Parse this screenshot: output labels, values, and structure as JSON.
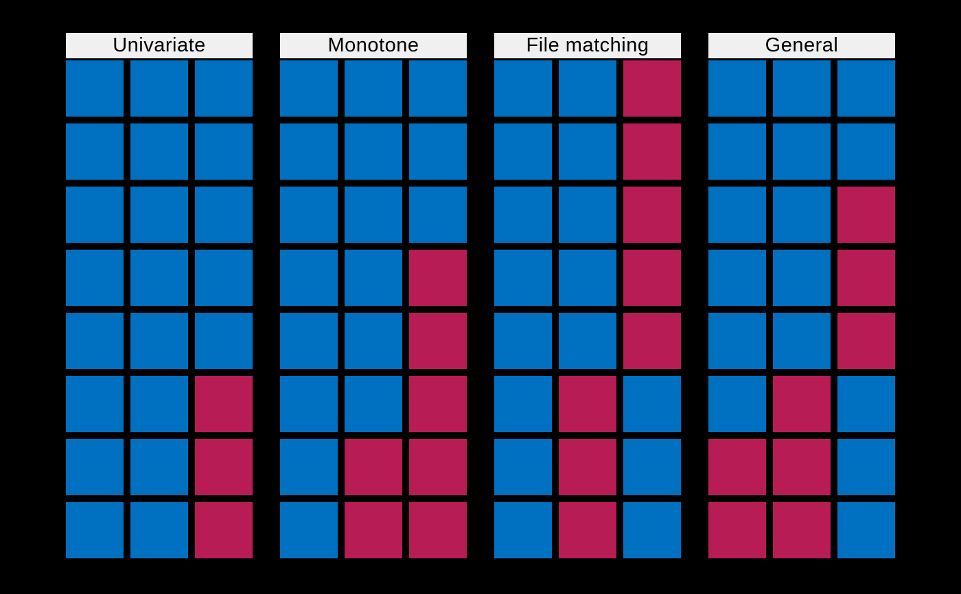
{
  "figure": {
    "colors": {
      "background": "#000000",
      "observed_blue": "#0070C0",
      "missing_red": "#B81C55",
      "header_bg": "#F0F0F0",
      "header_text": "#000000"
    }
  },
  "chart_data": {
    "type": "heatmap",
    "rows": 8,
    "columns_per_panel": 3,
    "cell_values": {
      "1": "blue cell",
      "0": "red cell"
    },
    "cell_colors": {
      "1": "#0070C0",
      "0": "#B81C55"
    },
    "legend_position": "none",
    "grid": "off",
    "panels": [
      {
        "title": "Univariate",
        "pattern": [
          [
            1,
            1,
            1
          ],
          [
            1,
            1,
            1
          ],
          [
            1,
            1,
            1
          ],
          [
            1,
            1,
            1
          ],
          [
            1,
            1,
            1
          ],
          [
            1,
            1,
            0
          ],
          [
            1,
            1,
            0
          ],
          [
            1,
            1,
            0
          ]
        ]
      },
      {
        "title": "Monotone",
        "pattern": [
          [
            1,
            1,
            1
          ],
          [
            1,
            1,
            1
          ],
          [
            1,
            1,
            1
          ],
          [
            1,
            1,
            0
          ],
          [
            1,
            1,
            0
          ],
          [
            1,
            1,
            0
          ],
          [
            1,
            0,
            0
          ],
          [
            1,
            0,
            0
          ]
        ]
      },
      {
        "title": "File matching",
        "pattern": [
          [
            1,
            1,
            0
          ],
          [
            1,
            1,
            0
          ],
          [
            1,
            1,
            0
          ],
          [
            1,
            1,
            0
          ],
          [
            1,
            1,
            0
          ],
          [
            1,
            0,
            1
          ],
          [
            1,
            0,
            1
          ],
          [
            1,
            0,
            1
          ]
        ]
      },
      {
        "title": "General",
        "pattern": [
          [
            1,
            1,
            1
          ],
          [
            1,
            1,
            1
          ],
          [
            1,
            1,
            0
          ],
          [
            1,
            1,
            0
          ],
          [
            1,
            1,
            0
          ],
          [
            1,
            0,
            1
          ],
          [
            0,
            0,
            1
          ],
          [
            0,
            0,
            1
          ]
        ]
      }
    ]
  }
}
